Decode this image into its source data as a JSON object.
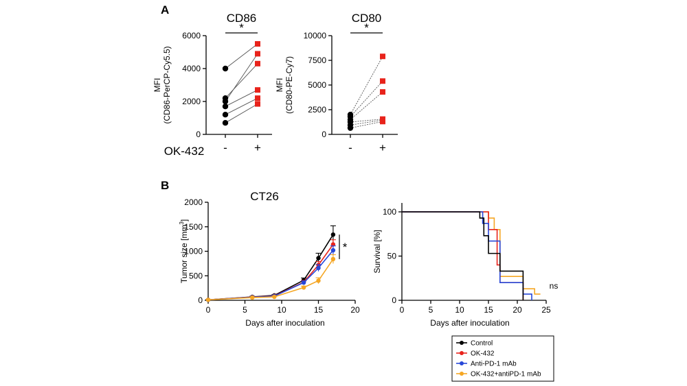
{
  "panels": {
    "a": "A",
    "b": "B"
  },
  "colors": {
    "Control": "#000000",
    "OK-432": "#e8231b",
    "Anti-PD-1 mAb": "#2747d8",
    "OK-432+antiPD-1 mAb": "#f5a623"
  },
  "chart_data": [
    {
      "type": "scatter",
      "title": "CD86",
      "ylabel": "MFI\n(CD86-PerCP-Cy5.5)",
      "xlabel": "OK-432",
      "categories": [
        "-",
        "+"
      ],
      "ylim": [
        0,
        6000
      ],
      "yticks": [
        0,
        2000,
        4000,
        6000
      ],
      "significance": "*",
      "pairs": [
        [
          700,
          1850
        ],
        [
          1200,
          2200
        ],
        [
          1700,
          2700
        ],
        [
          2200,
          4300
        ],
        [
          2000,
          4900
        ],
        [
          4000,
          5500
        ]
      ]
    },
    {
      "type": "scatter",
      "title": "CD80",
      "ylabel": "MFI\n(CD80-PE-Cy7)",
      "xlabel": "",
      "categories": [
        "-",
        "+"
      ],
      "ylim": [
        0,
        10000
      ],
      "yticks": [
        0,
        2500,
        5000,
        7500,
        10000
      ],
      "significance": "*",
      "pairs": [
        [
          650,
          1300
        ],
        [
          950,
          1450
        ],
        [
          1250,
          1550
        ],
        [
          1500,
          4300
        ],
        [
          1800,
          5400
        ],
        [
          2000,
          7900
        ]
      ]
    },
    {
      "type": "line",
      "title": "CT26",
      "xlabel": "Days after inoculation",
      "ylabel": "Tumor size [mm",
      "ylabel_sup": "3",
      "ylabel_end": "]",
      "xlim": [
        0,
        20
      ],
      "ylim": [
        0,
        2000
      ],
      "xticks": [
        0,
        5,
        10,
        15,
        20
      ],
      "yticks": [
        0,
        500,
        1000,
        1500,
        2000
      ],
      "significance": "*",
      "x": [
        0,
        6,
        9,
        13,
        15,
        17
      ],
      "series": [
        {
          "name": "Control",
          "values": [
            10,
            70,
            100,
            410,
            860,
            1340
          ],
          "err": [
            10,
            12,
            15,
            45,
            100,
            180
          ]
        },
        {
          "name": "OK-432",
          "values": [
            10,
            65,
            90,
            370,
            720,
            1140
          ],
          "err": [
            8,
            10,
            12,
            35,
            70,
            95
          ]
        },
        {
          "name": "Anti-PD-1 mAb",
          "values": [
            10,
            62,
            85,
            360,
            660,
            1020
          ],
          "err": [
            8,
            10,
            12,
            35,
            70,
            90
          ]
        },
        {
          "name": "OK-432+antiPD-1 mAb",
          "values": [
            10,
            55,
            70,
            260,
            400,
            840
          ],
          "err": [
            8,
            10,
            12,
            30,
            60,
            90
          ]
        }
      ]
    },
    {
      "type": "line",
      "xlabel": "Days after inoculation",
      "ylabel": "Survival [%]",
      "xlim": [
        0,
        25
      ],
      "ylim": [
        0,
        100
      ],
      "xticks": [
        0,
        5,
        10,
        15,
        20,
        25
      ],
      "yticks": [
        0,
        50,
        100
      ],
      "annotation": "ns",
      "series": [
        {
          "name": "Control",
          "steps": [
            [
              0,
              100
            ],
            [
              13.5,
              93
            ],
            [
              14.2,
              73
            ],
            [
              15,
              53
            ],
            [
              17,
              33
            ],
            [
              21,
              0
            ]
          ]
        },
        {
          "name": "OK-432",
          "steps": [
            [
              0,
              100
            ],
            [
              15,
              80
            ],
            [
              16.5,
              40
            ],
            [
              17,
              20
            ],
            [
              21,
              0
            ]
          ]
        },
        {
          "name": "Anti-PD-1 mAb",
          "steps": [
            [
              0,
              100
            ],
            [
              14,
              87
            ],
            [
              15,
              67
            ],
            [
              17,
              20
            ],
            [
              21,
              7
            ],
            [
              22.5,
              0
            ]
          ]
        },
        {
          "name": "OK-432+antiPD-1 mAb",
          "steps": [
            [
              0,
              100
            ],
            [
              15,
              93
            ],
            [
              16,
              80
            ],
            [
              17,
              27
            ],
            [
              21,
              13
            ],
            [
              23,
              7
            ],
            [
              24,
              7
            ]
          ]
        }
      ]
    }
  ],
  "legend": [
    "Control",
    "OK-432",
    "Anti-PD-1 mAb",
    "OK-432+antiPD-1 mAb"
  ]
}
